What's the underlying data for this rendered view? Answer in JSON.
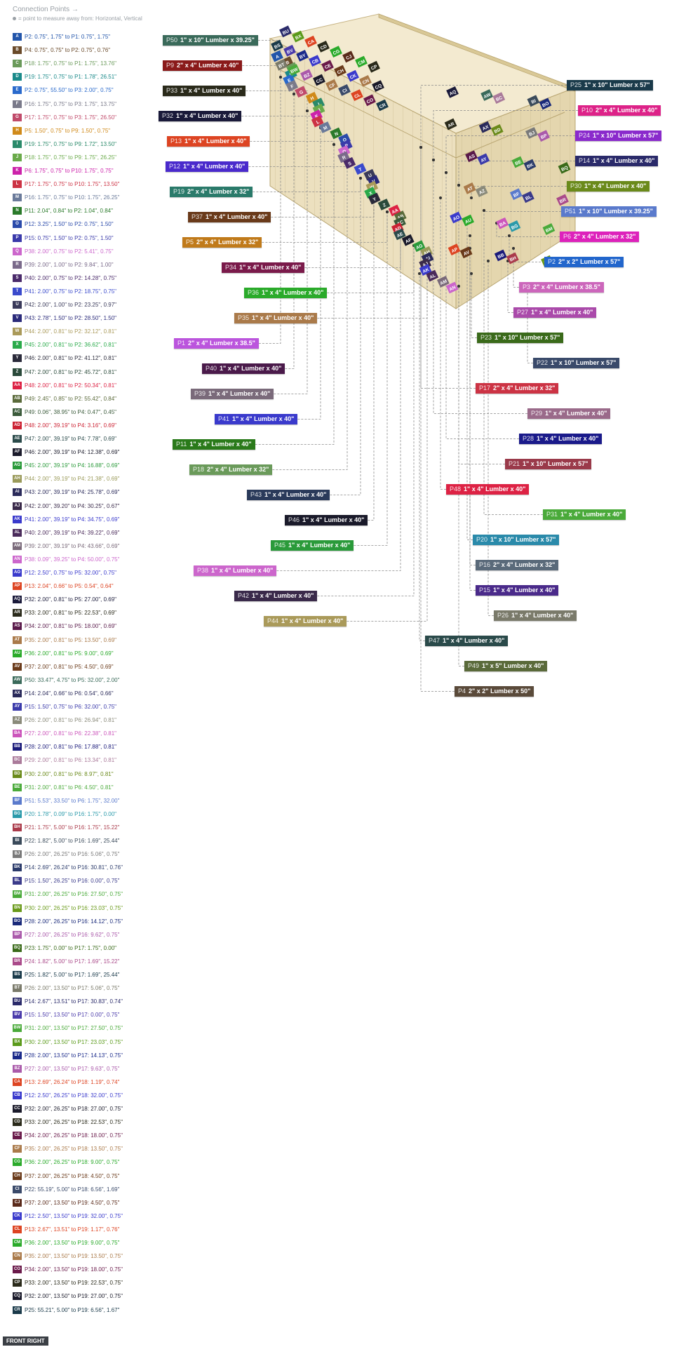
{
  "header": {
    "title": "Connection Points →",
    "legend": "= point to measure away from: Horizontal, Vertical"
  },
  "view_label": "FRONT RIGHT",
  "connections": [
    {
      "code": "A",
      "color": "#2255aa",
      "text": "P2: 0.75\", 1.75\" to P1: 0.75\", 1.75\""
    },
    {
      "code": "B",
      "color": "#6a4a2a",
      "text": "P4: 0.75\", 0.75\" to P2: 0.75\", 0.76\""
    },
    {
      "code": "C",
      "color": "#6a9a5a",
      "text": "P18: 1.75\", 0.75\" to P1: 1.75\", 13.76\""
    },
    {
      "code": "D",
      "color": "#1a8a8a",
      "text": "P19: 1.75\", 0.75\" to P1: 1.78\", 26.51\""
    },
    {
      "code": "E",
      "color": "#2a6acc",
      "text": "P2: 0.75\", 55.50\" to P3: 2.00\", 0.75\""
    },
    {
      "code": "F",
      "color": "#7a7a8a",
      "text": "P16: 1.75\", 0.75\" to P3: 1.75\", 13.75\""
    },
    {
      "code": "G",
      "color": "#c04a6a",
      "text": "P17: 1.75\", 0.75\" to P3: 1.75\", 26.50\""
    },
    {
      "code": "H",
      "color": "#d08a1a",
      "text": "P5: 1.50\", 0.75\" to P9: 1.50\", 0.75\""
    },
    {
      "code": "I",
      "color": "#2a8a6a",
      "text": "P19: 1.75\", 0.75\" to P9: 1.72\", 13.50\""
    },
    {
      "code": "J",
      "color": "#6aaa4a",
      "text": "P18: 1.75\", 0.75\" to P9: 1.75\", 26.25\""
    },
    {
      "code": "K",
      "color": "#cc22aa",
      "text": "P6: 1.75\", 0.75\" to P10: 1.75\", 0.75\""
    },
    {
      "code": "L",
      "color": "#cc3344",
      "text": "P17: 1.75\", 0.75\" to P10: 1.75\", 13.50\""
    },
    {
      "code": "M",
      "color": "#6a7a9a",
      "text": "P16: 1.75\", 0.75\" to P10: 1.75\", 26.25\""
    },
    {
      "code": "N",
      "color": "#2a7a2a",
      "text": "P11: 2.04\", 0.84\" to P2: 1.04\", 0.84\""
    },
    {
      "code": "O",
      "color": "#2a4aaa",
      "text": "P12: 3.25\", 1.50\" to P2: 0.75\", 1.50\""
    },
    {
      "code": "P",
      "color": "#3a3aaa",
      "text": "P15: 0.75\", 1.50\" to P2: 0.75\", 1.50\""
    },
    {
      "code": "Q",
      "color": "#cc66cc",
      "text": "P38: 2.00\", 0.75\" to P2: 5.41\", 0.75\""
    },
    {
      "code": "R",
      "color": "#7a6a8a",
      "text": "P39: 2.00\", 1.00\" to P2: 9.84\", 1.00\""
    },
    {
      "code": "S",
      "color": "#4a2a6a",
      "text": "P40: 2.00\", 0.75\" to P2: 14.28\", 0.75\""
    },
    {
      "code": "T",
      "color": "#3a4acc",
      "text": "P41: 2.00\", 0.75\" to P2: 18.75\", 0.75\""
    },
    {
      "code": "U",
      "color": "#3a3a5a",
      "text": "P42: 2.00\", 1.00\" to P2: 23.25\", 0.97\""
    },
    {
      "code": "V",
      "color": "#2a2a7a",
      "text": "P43: 2.78\", 1.50\" to P2: 28.50\", 1.50\""
    },
    {
      "code": "W",
      "color": "#aa9a5a",
      "text": "P44: 2.00\", 0.81\" to P2: 32.12\", 0.81\""
    },
    {
      "code": "X",
      "color": "#2aaa4a",
      "text": "P45: 2.00\", 0.81\" to P2: 36.62\", 0.81\""
    },
    {
      "code": "Y",
      "color": "#2a2a3a",
      "text": "P46: 2.00\", 0.81\" to P2: 41.12\", 0.81\""
    },
    {
      "code": "Z",
      "color": "#2a4a3a",
      "text": "P47: 2.00\", 0.81\" to P2: 45.72\", 0.81\""
    },
    {
      "code": "AA",
      "color": "#dd2244",
      "text": "P48: 2.00\", 0.81\" to P2: 50.34\", 0.81\""
    },
    {
      "code": "AB",
      "color": "#5a6a3a",
      "text": "P49: 2.45\", 0.85\" to P2: 55.42\", 0.84\""
    },
    {
      "code": "AC",
      "color": "#3a5a3a",
      "text": "P49: 0.06\", 38.95\" to P4: 0.47\", 0.45\""
    },
    {
      "code": "AD",
      "color": "#cc2233",
      "text": "P48: 2.00\", 39.19\" to P4: 3.16\", 0.69\""
    },
    {
      "code": "AE",
      "color": "#2a4a4a",
      "text": "P47: 2.00\", 39.19\" to P4: 7.78\", 0.69\""
    },
    {
      "code": "AF",
      "color": "#1a1a2a",
      "text": "P46: 2.00\", 39.19\" to P4: 12.38\", 0.69\""
    },
    {
      "code": "AG",
      "color": "#2a9a3a",
      "text": "P45: 2.00\", 39.19\" to P4: 16.88\", 0.69\""
    },
    {
      "code": "AH",
      "color": "#9a9a5a",
      "text": "P44: 2.00\", 39.19\" to P4: 21.38\", 0.69\""
    },
    {
      "code": "AI",
      "color": "#2a2a5a",
      "text": "P43: 2.00\", 39.19\" to P4: 25.78\", 0.69\""
    },
    {
      "code": "AJ",
      "color": "#3a2a4a",
      "text": "P42: 2.00\", 39.20\" to P4: 30.25\", 0.67\""
    },
    {
      "code": "AK",
      "color": "#3a3acc",
      "text": "P41: 2.00\", 39.19\" to P4: 34.75\", 0.69\""
    },
    {
      "code": "AL",
      "color": "#4a2a5a",
      "text": "P40: 2.00\", 39.19\" to P4: 39.22\", 0.69\""
    },
    {
      "code": "AM",
      "color": "#7a6a7a",
      "text": "P39: 2.00\", 39.19\" to P4: 43.66\", 0.69\""
    },
    {
      "code": "AN",
      "color": "#cc66cc",
      "text": "P38: 0.09\", 39.25\" to P4: 50.00\", 0.75\""
    },
    {
      "code": "AO",
      "color": "#3a3acc",
      "text": "P12: 2.50\", 0.75\" to P5: 32.00\", 0.75\""
    },
    {
      "code": "AP",
      "color": "#dd4422",
      "text": "P13: 2.04\", 0.66\" to P5: 0.54\", 0.64\""
    },
    {
      "code": "AQ",
      "color": "#1a1a3a",
      "text": "P32: 2.00\", 0.81\" to P5: 27.00\", 0.69\""
    },
    {
      "code": "AR",
      "color": "#2a2a1a",
      "text": "P33: 2.00\", 0.81\" to P5: 22.53\", 0.69\""
    },
    {
      "code": "AS",
      "color": "#5a1a4a",
      "text": "P34: 2.00\", 0.81\" to P5: 18.00\", 0.69\""
    },
    {
      "code": "AT",
      "color": "#aa7a4a",
      "text": "P35: 2.00\", 0.81\" to P5: 13.50\", 0.69\""
    },
    {
      "code": "AU",
      "color": "#2aaa2a",
      "text": "P36: 2.00\", 0.81\" to P5: 9.00\", 0.69\""
    },
    {
      "code": "AV",
      "color": "#6a3a1a",
      "text": "P37: 2.00\", 0.81\" to P5: 4.50\", 0.69\""
    },
    {
      "code": "AW",
      "color": "#3a6a5a",
      "text": "P50: 33.47\", 4.75\" to P5: 32.00\", 2.00\""
    },
    {
      "code": "AX",
      "color": "#2a2a5a",
      "text": "P14: 2.04\", 0.66\" to P6: 0.54\", 0.66\""
    },
    {
      "code": "AY",
      "color": "#3a3aaa",
      "text": "P15: 1.50\", 0.75\" to P6: 32.00\", 0.75\""
    },
    {
      "code": "AZ",
      "color": "#8a8a7a",
      "text": "P26: 2.00\", 0.81\" to P6: 26.94\", 0.81\""
    },
    {
      "code": "BA",
      "color": "#cc55bb",
      "text": "P27: 2.00\", 0.81\" to P6: 22.38\", 0.81\""
    },
    {
      "code": "BB",
      "color": "#1a1a7a",
      "text": "P28: 2.00\", 0.81\" to P6: 17.88\", 0.81\""
    },
    {
      "code": "BC",
      "color": "#aa7a9a",
      "text": "P29: 2.00\", 0.81\" to P6: 13.34\", 0.81\""
    },
    {
      "code": "BD",
      "color": "#6a8a1a",
      "text": "P30: 2.00\", 0.81\" to P6: 8.97\", 0.81\""
    },
    {
      "code": "BE",
      "color": "#4aaa3a",
      "text": "P31: 2.00\", 0.81\" to P6: 4.50\", 0.81\""
    },
    {
      "code": "BF",
      "color": "#5a7acc",
      "text": "P51: 5.53\", 33.50\" to P6: 1.75\", 32.00\""
    },
    {
      "code": "BG",
      "color": "#2a9aaa",
      "text": "P20: 1.78\", 0.09\" to P16: 1.75\", 0.00\""
    },
    {
      "code": "BH",
      "color": "#aa3a4a",
      "text": "P21: 1.75\", 5.00\" to P16: 1.75\", 15.22\""
    },
    {
      "code": "BI",
      "color": "#3a4a5a",
      "text": "P22: 1.82\", 5.00\" to P16: 1.69\", 25.44\""
    },
    {
      "code": "BJ",
      "color": "#7a7a7a",
      "text": "P26: 2.00\", 26.25\" to P16: 5.06\", 0.75\""
    },
    {
      "code": "BK",
      "color": "#2a3a6a",
      "text": "P14: 2.69\", 26.24\" to P16: 30.81\", 0.76\""
    },
    {
      "code": "BL",
      "color": "#3a3a8a",
      "text": "P15: 1.50\", 26.25\" to P16: 0.00\", 0.75\""
    },
    {
      "code": "BM",
      "color": "#4aaa3a",
      "text": "P31: 2.00\", 26.25\" to P16: 27.50\", 0.75\""
    },
    {
      "code": "BN",
      "color": "#6a9a1a",
      "text": "P30: 2.00\", 26.25\" to P16: 23.03\", 0.75\""
    },
    {
      "code": "BO",
      "color": "#1a2a7a",
      "text": "P28: 2.00\", 26.25\" to P16: 14.12\", 0.75\""
    },
    {
      "code": "BP",
      "color": "#aa5aaa",
      "text": "P27: 2.00\", 26.25\" to P16: 9.62\", 0.75\""
    },
    {
      "code": "BQ",
      "color": "#3a6a1a",
      "text": "P23: 1.75\", 0.00\" to P17: 1.75\", 0.00\""
    },
    {
      "code": "BR",
      "color": "#aa4a8a",
      "text": "P24: 1.82\", 5.00\" to P17: 1.69\", 15.22\""
    },
    {
      "code": "BS",
      "color": "#1a3a4a",
      "text": "P25: 1.82\", 5.00\" to P17: 1.69\", 25.44\""
    },
    {
      "code": "BT",
      "color": "#7a7a6a",
      "text": "P26: 2.00\", 13.50\" to P17: 5.06\", 0.75\""
    },
    {
      "code": "BU",
      "color": "#2a2a6a",
      "text": "P14: 2.67\", 13.51\" to P17: 30.83\", 0.74\""
    },
    {
      "code": "BV",
      "color": "#4a3aaa",
      "text": "P15: 1.50\", 13.50\" to P17: 0.00\", 0.75\""
    },
    {
      "code": "BW",
      "color": "#4aaa3a",
      "text": "P31: 2.00\", 13.50\" to P17: 27.50\", 0.75\""
    },
    {
      "code": "BX",
      "color": "#5a9a1a",
      "text": "P30: 2.00\", 13.50\" to P17: 23.03\", 0.75\""
    },
    {
      "code": "BY",
      "color": "#1a2a8a",
      "text": "P28: 2.00\", 13.50\" to P17: 14.13\", 0.75\""
    },
    {
      "code": "BZ",
      "color": "#aa5aaa",
      "text": "P27: 2.00\", 13.50\" to P17: 9.63\", 0.75\""
    },
    {
      "code": "CA",
      "color": "#dd4422",
      "text": "P13: 2.69\", 26.24\" to P18: 1.19\", 0.74\""
    },
    {
      "code": "CB",
      "color": "#3a3acc",
      "text": "P12: 2.50\", 26.25\" to P18: 32.00\", 0.75\""
    },
    {
      "code": "CC",
      "color": "#1a1a2a",
      "text": "P32: 2.00\", 26.25\" to P18: 27.00\", 0.75\""
    },
    {
      "code": "CD",
      "color": "#2a2a1a",
      "text": "P33: 2.00\", 26.25\" to P18: 22.53\", 0.75\""
    },
    {
      "code": "CE",
      "color": "#6a1a4a",
      "text": "P34: 2.00\", 26.25\" to P18: 18.00\", 0.75\""
    },
    {
      "code": "CF",
      "color": "#aa7a4a",
      "text": "P35: 2.00\", 26.25\" to P18: 13.50\", 0.75\""
    },
    {
      "code": "CG",
      "color": "#2aaa2a",
      "text": "P36: 2.00\", 26.25\" to P18: 9.00\", 0.75\""
    },
    {
      "code": "CH",
      "color": "#6a3a1a",
      "text": "P37: 2.00\", 26.25\" to P18: 4.50\", 0.75\""
    },
    {
      "code": "CI",
      "color": "#3a4a6a",
      "text": "P22: 55.19\", 5.00\" to P18: 6.56\", 1.69\""
    },
    {
      "code": "CJ",
      "color": "#5a2a1a",
      "text": "P37: 2.00\", 13.50\" to P19: 4.50\", 0.75\""
    },
    {
      "code": "CK",
      "color": "#3a3acc",
      "text": "P12: 2.50\", 13.50\" to P19: 32.00\", 0.75\""
    },
    {
      "code": "CL",
      "color": "#dd4422",
      "text": "P13: 2.67\", 13.51\" to P19: 1.17\", 0.76\""
    },
    {
      "code": "CM",
      "color": "#2aaa2a",
      "text": "P36: 2.00\", 13.50\" to P19: 9.00\", 0.75\""
    },
    {
      "code": "CN",
      "color": "#aa7a4a",
      "text": "P35: 2.00\", 13.50\" to P19: 13.50\", 0.75\""
    },
    {
      "code": "CO",
      "color": "#6a1a4a",
      "text": "P34: 2.00\", 13.50\" to P19: 18.00\", 0.75\""
    },
    {
      "code": "CP",
      "color": "#2a2a1a",
      "text": "P33: 2.00\", 13.50\" to P19: 22.53\", 0.75\""
    },
    {
      "code": "CQ",
      "color": "#1a1a2a",
      "text": "P32: 2.00\", 13.50\" to P19: 27.00\", 0.75\""
    },
    {
      "code": "CR",
      "color": "#1a3a4a",
      "text": "P25: 55.21\", 5.00\" to P19: 6.56\", 1.67\""
    }
  ],
  "parts": [
    {
      "id": "P50",
      "name": "1\" x 10\" Lumber  x 39.25\"",
      "color": "#3a6a5a"
    },
    {
      "id": "P9",
      "name": "2\" x 4\" Lumber  x 40\"",
      "color": "#8a1a1a"
    },
    {
      "id": "P33",
      "name": "1\" x 4\" Lumber  x 40\"",
      "color": "#2a2a1a"
    },
    {
      "id": "P32",
      "name": "1\" x 4\" Lumber  x 40\"",
      "color": "#1a1a3a"
    },
    {
      "id": "P13",
      "name": "1\" x 4\" Lumber  x 40\"",
      "color": "#dd4422"
    },
    {
      "id": "P12",
      "name": "1\" x 4\" Lumber  x 40\"",
      "color": "#4a2acc"
    },
    {
      "id": "P19",
      "name": "2\" x 4\" Lumber  x 32\"",
      "color": "#2a7a6a"
    },
    {
      "id": "P37",
      "name": "1\" x 4\" Lumber  x 40\"",
      "color": "#6a3a1a"
    },
    {
      "id": "P5",
      "name": "2\" x 4\" Lumber  x 32\"",
      "color": "#c07a1a"
    },
    {
      "id": "P34",
      "name": "1\" x 4\" Lumber  x 40\"",
      "color": "#7a1a4a"
    },
    {
      "id": "P36",
      "name": "1\" x 4\" Lumber  x 40\"",
      "color": "#2aaa2a"
    },
    {
      "id": "P35",
      "name": "1\" x 4\" Lumber  x 40\"",
      "color": "#aa7a4a"
    },
    {
      "id": "P1",
      "name": "2\" x 4\" Lumber  x 38.5\"",
      "color": "#bb55dd"
    },
    {
      "id": "P40",
      "name": "1\" x 4\" Lumber  x 40\"",
      "color": "#4a1a4a"
    },
    {
      "id": "P39",
      "name": "1\" x 4\" Lumber  x 40\"",
      "color": "#7a6a7a"
    },
    {
      "id": "P41",
      "name": "1\" x 4\" Lumber  x 40\"",
      "color": "#3a3acc"
    },
    {
      "id": "P11",
      "name": "1\" x 4\" Lumber  x 40\"",
      "color": "#2a7a1a"
    },
    {
      "id": "P18",
      "name": "2\" x 4\" Lumber  x 32\"",
      "color": "#6a9a5a"
    },
    {
      "id": "P43",
      "name": "1\" x 4\" Lumber  x 40\"",
      "color": "#2a3a5a"
    },
    {
      "id": "P46",
      "name": "1\" x 4\" Lumber  x 40\"",
      "color": "#1a1a2a"
    },
    {
      "id": "P45",
      "name": "1\" x 4\" Lumber  x 40\"",
      "color": "#2a9a3a"
    },
    {
      "id": "P38",
      "name": "1\" x 4\" Lumber  x 40\"",
      "color": "#cc66cc"
    },
    {
      "id": "P42",
      "name": "1\" x 4\" Lumber  x 40\"",
      "color": "#3a2a4a"
    },
    {
      "id": "P44",
      "name": "1\" x 4\" Lumber  x 40\"",
      "color": "#aa9a5a"
    },
    {
      "id": "P25",
      "name": "1\" x 10\" Lumber  x 57\"",
      "color": "#1a3a4a"
    },
    {
      "id": "P10",
      "name": "2\" x 4\" Lumber  x 40\"",
      "color": "#dd2288"
    },
    {
      "id": "P24",
      "name": "1\" x 10\" Lumber  x 57\"",
      "color": "#8a2acc"
    },
    {
      "id": "P14",
      "name": "1\" x 4\" Lumber  x 40\"",
      "color": "#2a2a6a"
    },
    {
      "id": "P30",
      "name": "1\" x 4\" Lumber  x 40\"",
      "color": "#6a8a1a"
    },
    {
      "id": "P51",
      "name": "1\" x 10\" Lumber  x 39.25\"",
      "color": "#5a7acc"
    },
    {
      "id": "P6",
      "name": "2\" x 4\" Lumber  x 32\"",
      "color": "#dd22bb"
    },
    {
      "id": "P2",
      "name": "2\" x 2\" Lumber  x 57\"",
      "color": "#2266cc"
    },
    {
      "id": "P3",
      "name": "2\" x 4\" Lumber  x 38.5\"",
      "color": "#cc66bb"
    },
    {
      "id": "P27",
      "name": "1\" x 4\" Lumber  x 40\"",
      "color": "#aa4aaa"
    },
    {
      "id": "P23",
      "name": "1\" x 10\" Lumber  x 57\"",
      "color": "#3a6a1a"
    },
    {
      "id": "P22",
      "name": "1\" x 10\" Lumber  x 57\"",
      "color": "#3a4a6a"
    },
    {
      "id": "P17",
      "name": "2\" x 4\" Lumber  x 32\"",
      "color": "#cc3344"
    },
    {
      "id": "P29",
      "name": "1\" x 4\" Lumber  x 40\"",
      "color": "#9a6a8a"
    },
    {
      "id": "P28",
      "name": "1\" x 4\" Lumber  x 40\"",
      "color": "#1a1a8a"
    },
    {
      "id": "P21",
      "name": "1\" x 10\" Lumber  x 57\"",
      "color": "#9a3a4a"
    },
    {
      "id": "P48",
      "name": "1\" x 4\" Lumber  x 40\"",
      "color": "#dd2244"
    },
    {
      "id": "P31",
      "name": "1\" x 4\" Lumber  x 40\"",
      "color": "#4aaa3a"
    },
    {
      "id": "P20",
      "name": "1\" x 10\" Lumber  x 57\"",
      "color": "#2a8aaa"
    },
    {
      "id": "P16",
      "name": "2\" x 4\" Lumber  x 32\"",
      "color": "#5a6a7a"
    },
    {
      "id": "P15",
      "name": "1\" x 4\" Lumber  x 40\"",
      "color": "#4a2a8a"
    },
    {
      "id": "P26",
      "name": "1\" x 4\" Lumber  x 40\"",
      "color": "#7a7a6a"
    },
    {
      "id": "P47",
      "name": "1\" x 4\" Lumber  x 40\"",
      "color": "#2a4a4a"
    },
    {
      "id": "P49",
      "name": "1\" x 5\" Lumber  x 40\"",
      "color": "#5a6a3a"
    },
    {
      "id": "P4",
      "name": "2\" x 2\" Lumber  x 50\"",
      "color": "#5a4a3a"
    }
  ]
}
